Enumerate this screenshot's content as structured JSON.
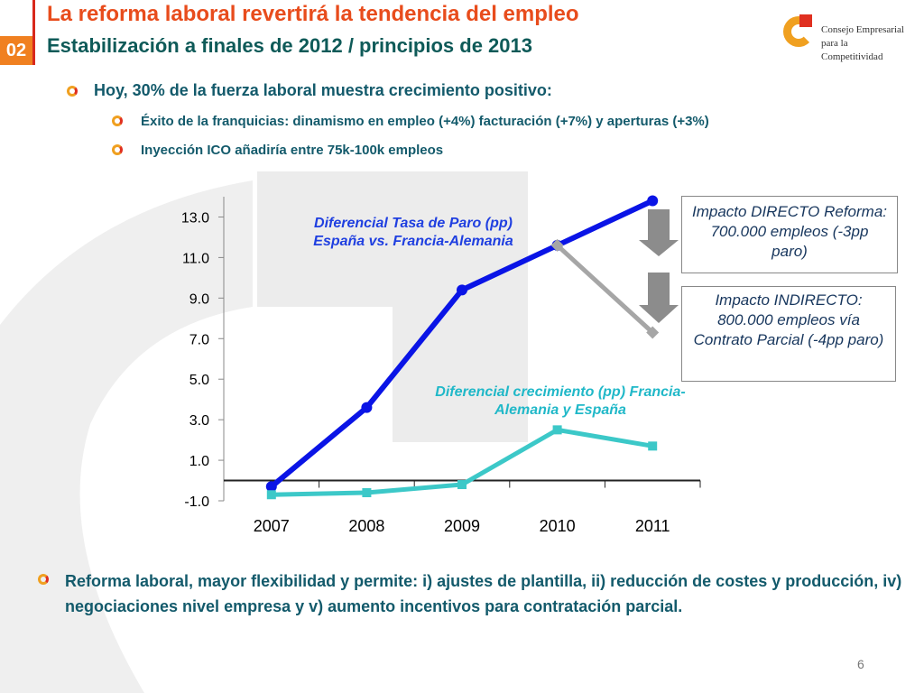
{
  "header": {
    "section": "02",
    "title": "La reforma laboral revertirá la tendencia del empleo",
    "subtitle": "Estabilización a finales de 2012 / principios de 2013"
  },
  "logo": {
    "lines": [
      "Consejo Empresarial",
      "para la",
      "Competitividad"
    ]
  },
  "bullets": [
    {
      "text": "Hoy, 30% de la fuerza laboral muestra crecimiento positivo:",
      "sub": [
        "Éxito de la franquicias: dinamismo en empleo (+4%) facturación (+7%) y  aperturas (+3%)",
        "Inyección ICO añadiría entre 75k-100k empleos"
      ]
    }
  ],
  "chart_data": {
    "type": "line",
    "categories": [
      "2007",
      "2008",
      "2009",
      "2010",
      "2011"
    ],
    "series": [
      {
        "name": "Diferencial Tasa de Paro (pp) España vs.  Francia-Alemania",
        "color": "#0a14e6",
        "marker": "circle",
        "values": [
          -0.3,
          3.6,
          9.4,
          11.6,
          13.8
        ]
      },
      {
        "color": "#a6a6a6",
        "marker": "diamond",
        "values": [
          null,
          null,
          null,
          11.6,
          7.3
        ]
      },
      {
        "name": "Diferencial crecimiento  (pp) Francia-Alemania y España",
        "color": "#3cc8c8",
        "marker": "square",
        "values": [
          -0.7,
          -0.6,
          -0.2,
          2.5,
          1.7
        ]
      }
    ],
    "ylim": [
      -1,
      14
    ],
    "yticks": [
      {
        "value": -1,
        "label": "-1.0"
      },
      {
        "value": 1,
        "label": "1.0"
      },
      {
        "value": 3,
        "label": "3.0"
      },
      {
        "value": 5,
        "label": "5.0"
      },
      {
        "value": 7,
        "label": "7.0"
      },
      {
        "value": 9,
        "label": "9.0"
      },
      {
        "value": 11,
        "label": "11.0"
      },
      {
        "value": 13,
        "label": "13.0"
      }
    ],
    "annotations": [
      "Impacto DIRECTO Reforma:  700.000 empleos (-3pp paro)",
      "Impacto INDIRECTO: 800.000 empleos vía Contrato Parcial  (-4pp paro)"
    ]
  },
  "footer": {
    "text": "Reforma laboral, mayor flexibilidad y permite: i) ajustes de plantilla, ii) reducción de costes y producción, iv) negociaciones nivel empresa y v) aumento incentivos para contratación parcial.",
    "page": "6"
  }
}
